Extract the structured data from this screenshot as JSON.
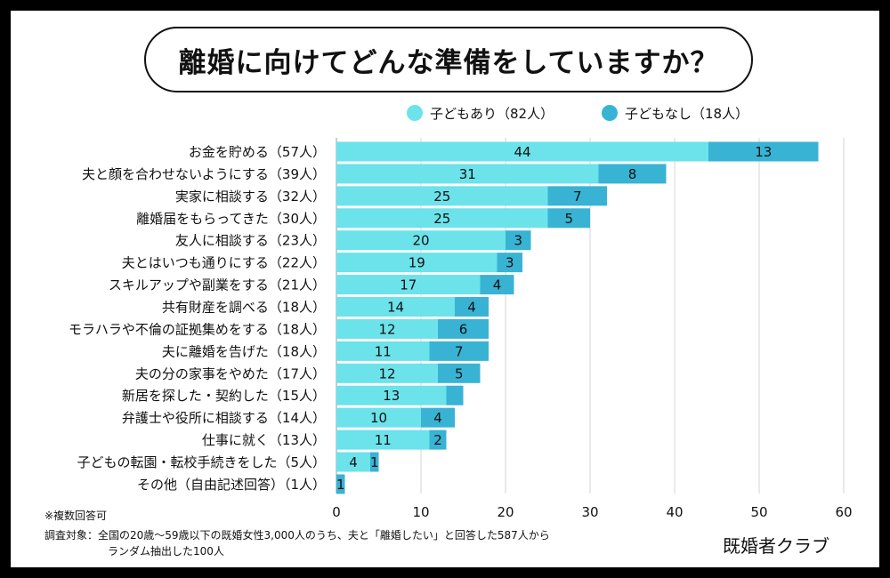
{
  "title": "離婚に向けてどんな準備をしていますか？",
  "colors": {
    "with_children": "#6ce2ea",
    "without_children": "#38b3d3",
    "grid": "#d6d6d6",
    "text": "#111111"
  },
  "chart_data": {
    "type": "bar",
    "orientation": "horizontal",
    "stacked": true,
    "categories": [
      "お金を貯める（57人）",
      "夫と顔を合わせないようにする（39人）",
      "実家に相談する（32人）",
      "離婚届をもらってきた（30人）",
      "友人に相談する（23人）",
      "夫とはいつも通りにする（22人）",
      "スキルアップや副業をする（21人）",
      "共有財産を調べる（18人）",
      "モラハラや不倫の証拠集めをする（18人）",
      "夫に離婚を告げた（18人）",
      "夫の分の家事をやめた（17人）",
      "新居を探した・契約した（15人）",
      "弁護士や役所に相談する（14人）",
      "仕事に就く（13人）",
      "子どもの転園・転校手続きをした（5人）",
      "その他（自由記述回答）（1人）"
    ],
    "series": [
      {
        "name": "子どもあり（82人）",
        "values": [
          44,
          31,
          25,
          25,
          20,
          19,
          17,
          14,
          12,
          11,
          12,
          13,
          10,
          11,
          4,
          0
        ]
      },
      {
        "name": "子どもなし（18人）",
        "values": [
          13,
          8,
          7,
          5,
          3,
          3,
          4,
          4,
          6,
          7,
          5,
          2,
          4,
          2,
          1,
          1
        ]
      }
    ],
    "segment_labels": [
      [
        "44",
        "13"
      ],
      [
        "31",
        "8"
      ],
      [
        "25",
        "7"
      ],
      [
        "25",
        "5"
      ],
      [
        "20",
        "3"
      ],
      [
        "19",
        "3"
      ],
      [
        "17",
        "4"
      ],
      [
        "14",
        "4"
      ],
      [
        "12",
        "6"
      ],
      [
        "11",
        "7"
      ],
      [
        "12",
        "5"
      ],
      [
        "13",
        ""
      ],
      [
        "10",
        "4"
      ],
      [
        "11",
        "2"
      ],
      [
        "4",
        "1"
      ],
      [
        "",
        "1"
      ]
    ],
    "xlim": [
      0,
      60
    ],
    "xticks": [
      "0",
      "10",
      "20",
      "30",
      "40",
      "50",
      "60"
    ],
    "grid": true,
    "legend": "top-right"
  },
  "notes": {
    "line1": "※複数回答可",
    "line2": "調査対象：全国の20歳〜59歳以下の既婚女性3,000人のうち、夫と「離婚したい」と回答した587人から",
    "line3": "ランダム抽出した100人"
  },
  "brand": "既婚者クラブ"
}
